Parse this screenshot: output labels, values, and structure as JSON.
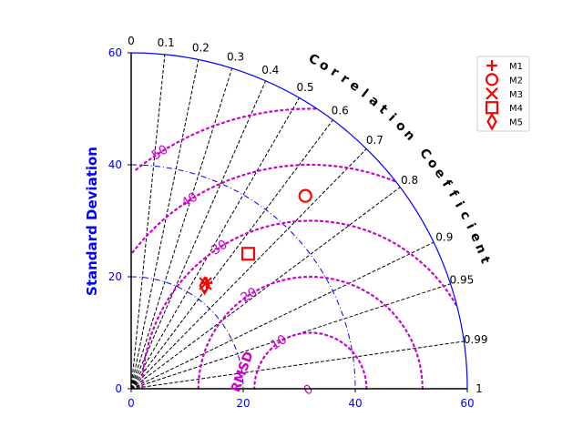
{
  "chart_data": {
    "type": "taylor",
    "ylabel": "Standard Deviation",
    "corr_label": "Correlation Coefficient",
    "rmsd_label": "RMSD",
    "std_range": [
      0,
      60
    ],
    "std_ticks": [
      "0",
      "20",
      "40",
      "60"
    ],
    "std_contours": [
      20,
      40
    ],
    "corr_ticks": [
      {
        "value": 0,
        "label": "0"
      },
      {
        "value": 0.1,
        "label": "0.1"
      },
      {
        "value": 0.2,
        "label": "0.2"
      },
      {
        "value": 0.3,
        "label": "0.3"
      },
      {
        "value": 0.4,
        "label": "0.4"
      },
      {
        "value": 0.5,
        "label": "0.5"
      },
      {
        "value": 0.6,
        "label": "0.6"
      },
      {
        "value": 0.7,
        "label": "0.7"
      },
      {
        "value": 0.8,
        "label": "0.8"
      },
      {
        "value": 0.9,
        "label": "0.9"
      },
      {
        "value": 0.95,
        "label": "0.95"
      },
      {
        "value": 0.99,
        "label": "0.99"
      },
      {
        "value": 1,
        "label": "1"
      }
    ],
    "reference_std": 32,
    "rmsd_contours": [
      {
        "value": 0,
        "label": "0"
      },
      {
        "value": 10,
        "label": "10"
      },
      {
        "value": 20,
        "label": "20"
      },
      {
        "value": 30,
        "label": "30"
      },
      {
        "value": 40,
        "label": "40"
      },
      {
        "value": 50,
        "label": "50"
      }
    ],
    "series": [
      {
        "name": "M1",
        "marker": "plus",
        "std": 23.2,
        "corr": 0.58
      },
      {
        "name": "M2",
        "marker": "circle",
        "std": 46.4,
        "corr": 0.67
      },
      {
        "name": "M3",
        "marker": "x",
        "std": 23.0,
        "corr": 0.577
      },
      {
        "name": "M4",
        "marker": "square",
        "std": 31.9,
        "corr": 0.655
      },
      {
        "name": "M5",
        "marker": "diamond",
        "std": 22.6,
        "corr": 0.58
      }
    ],
    "legend_position": "top-right",
    "colors": {
      "axis": "#0000ff",
      "rmsd": "#cc00cc",
      "markers": "#ff0000",
      "corr_lines": "#000000"
    }
  }
}
